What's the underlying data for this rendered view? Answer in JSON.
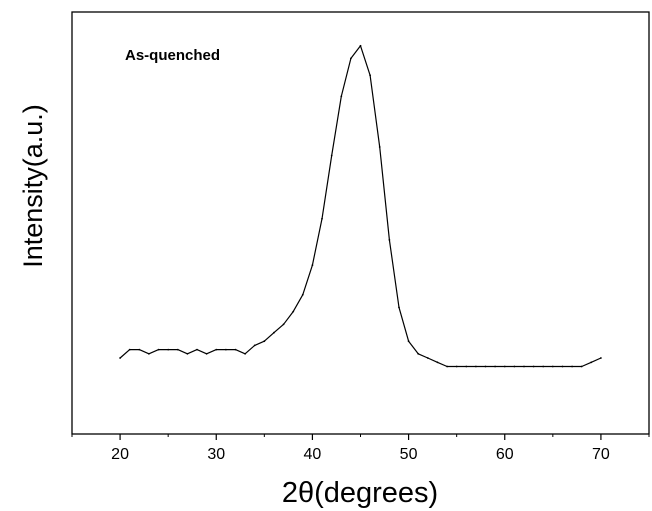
{
  "chart_data": {
    "type": "line",
    "title": "",
    "annotation": "As-quenched",
    "xlabel": "2θ(degrees)",
    "ylabel": "Intensity(a.u.)",
    "xlim": [
      15,
      75
    ],
    "ylim": [
      0,
      1
    ],
    "xticks": [
      20,
      30,
      40,
      50,
      60,
      70
    ],
    "xticks_minor": [
      15,
      25,
      35,
      45,
      55,
      65,
      75
    ],
    "y_tick_labels_shown": false,
    "grid": false,
    "legend": "none",
    "line_color": "#000000",
    "series": [
      {
        "x": [
          20,
          21,
          22,
          23,
          24,
          25,
          26,
          27,
          28,
          29,
          30,
          31,
          32,
          33,
          34,
          35,
          36,
          37,
          38,
          39,
          40,
          41,
          42,
          43,
          44,
          45,
          46,
          47,
          48,
          49,
          50,
          51,
          52,
          53,
          54,
          55,
          56,
          57,
          58,
          59,
          60,
          61,
          62,
          63,
          64,
          65,
          66,
          67,
          68,
          69,
          70
        ],
        "y": [
          0.18,
          0.2,
          0.2,
          0.19,
          0.2,
          0.2,
          0.2,
          0.19,
          0.2,
          0.19,
          0.2,
          0.2,
          0.2,
          0.19,
          0.21,
          0.22,
          0.24,
          0.26,
          0.29,
          0.33,
          0.4,
          0.51,
          0.66,
          0.8,
          0.89,
          0.92,
          0.85,
          0.68,
          0.46,
          0.3,
          0.22,
          0.19,
          0.18,
          0.17,
          0.16,
          0.16,
          0.16,
          0.16,
          0.16,
          0.16,
          0.16,
          0.16,
          0.16,
          0.16,
          0.16,
          0.16,
          0.16,
          0.16,
          0.16,
          0.17,
          0.18
        ]
      }
    ]
  }
}
